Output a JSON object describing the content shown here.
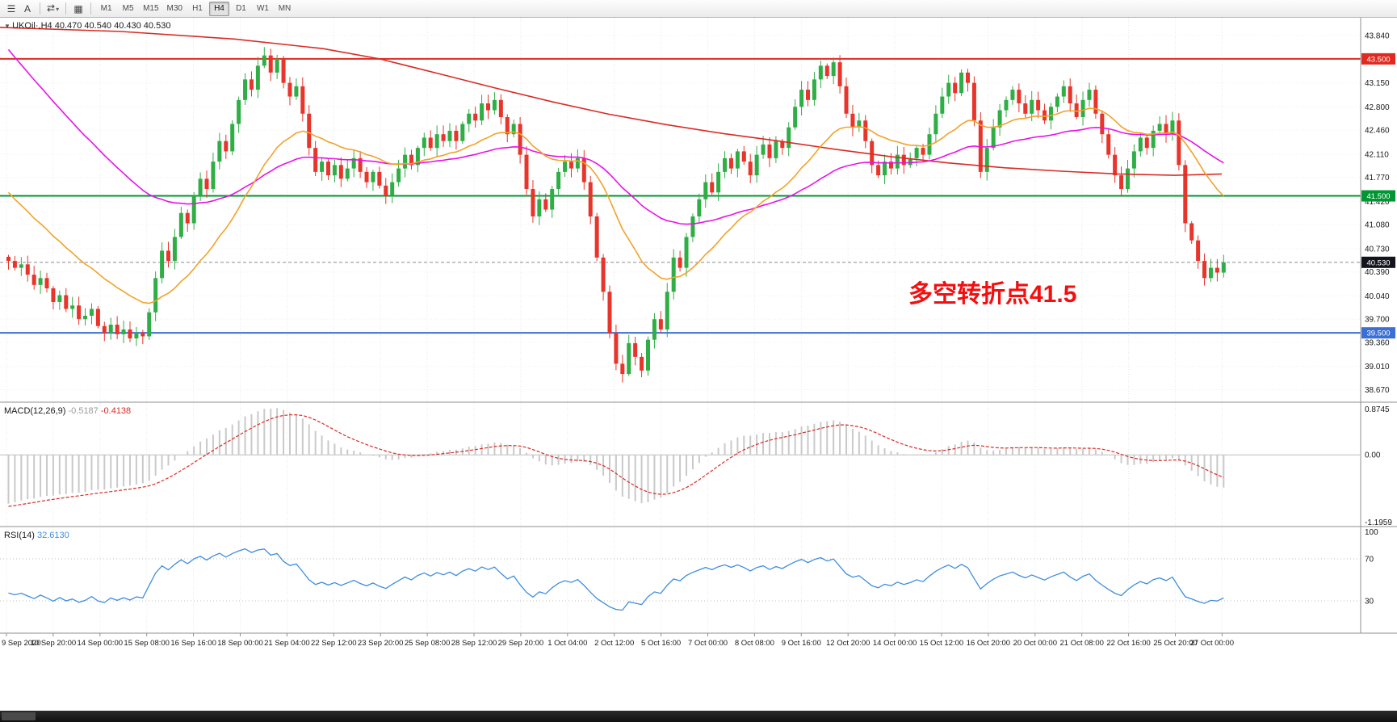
{
  "toolbar": {
    "icons": [
      {
        "name": "charts-menu-icon",
        "glyph": "☰",
        "caret": ""
      },
      {
        "name": "text-annotation-icon",
        "glyph": "A",
        "caret": ""
      },
      {
        "name": "symbols-cycle-icon",
        "glyph": "⇄",
        "caret": "▾"
      },
      {
        "name": "chart-template-icon",
        "glyph": "▦",
        "caret": ""
      }
    ],
    "timeframes": [
      "M1",
      "M5",
      "M15",
      "M30",
      "H1",
      "H4",
      "D1",
      "W1",
      "MN"
    ],
    "active_timeframe": "H4"
  },
  "chart": {
    "collapse_arrow": "▼",
    "symbol_label": "UKOil·,H4",
    "ohlc_label": "40.470 40.540 40.430 40.530",
    "annotation": {
      "text": "多空转折点41.5",
      "color": "#f30f0f"
    },
    "colors": {
      "up": "#2eae45",
      "down": "#e8342a",
      "ma_fast": "#f2a22b",
      "ma_medium": "#e812e8",
      "ma_slow": "#d92b25",
      "hline_red": "#e02a20",
      "hline_green": "#009632",
      "hline_blue": "#3b6fd4",
      "current_line": "#8a8a8a",
      "current_badge": "#14141e",
      "macd_hist": "#c9c9c9",
      "macd_signal": "#d92b25",
      "rsi_line": "#3e8ede",
      "grid": "#e9e9e9",
      "axis_line": "#8f8f8f",
      "tick_text": "#1a1a1a"
    },
    "hlines": [
      {
        "price": 43.5,
        "label": "43.500",
        "color_key": "hline_red"
      },
      {
        "price": 41.5,
        "label": "41.500",
        "color_key": "hline_green"
      },
      {
        "price": 39.5,
        "label": "39.500",
        "color_key": "hline_blue"
      }
    ],
    "current_price": {
      "value": 40.53,
      "label": "40.530"
    },
    "price_ticks": [
      "43.840",
      "43.150",
      "42.800",
      "42.460",
      "42.110",
      "41.770",
      "41.420",
      "41.080",
      "40.730",
      "40.390",
      "40.040",
      "39.700",
      "39.360",
      "39.010",
      "38.670"
    ]
  },
  "chart_data": {
    "type": "candlestick",
    "symbol": "UKOil",
    "timeframe": "H4",
    "title": "UKOil H4 candlestick chart with MACD and RSI",
    "y_range": [
      38.5,
      44.1
    ],
    "closes": [
      40.55,
      40.45,
      40.5,
      40.35,
      40.2,
      40.3,
      40.15,
      39.95,
      40.05,
      39.85,
      39.9,
      39.7,
      39.75,
      39.85,
      39.6,
      39.5,
      39.62,
      39.48,
      39.55,
      39.42,
      39.5,
      39.45,
      39.8,
      40.3,
      40.7,
      40.55,
      40.9,
      41.25,
      41.1,
      41.5,
      41.75,
      41.6,
      42.0,
      42.3,
      42.15,
      42.55,
      42.9,
      43.2,
      43.05,
      43.4,
      43.55,
      43.3,
      43.5,
      43.15,
      42.95,
      43.1,
      42.7,
      42.2,
      41.85,
      42.0,
      41.8,
      41.95,
      41.75,
      41.9,
      42.05,
      41.85,
      41.7,
      41.85,
      41.65,
      41.5,
      41.7,
      41.9,
      42.1,
      41.95,
      42.2,
      42.35,
      42.2,
      42.4,
      42.3,
      42.45,
      42.3,
      42.55,
      42.7,
      42.6,
      42.85,
      42.75,
      42.9,
      42.65,
      42.4,
      42.55,
      42.1,
      41.6,
      41.2,
      41.45,
      41.3,
      41.6,
      41.85,
      42.0,
      41.9,
      42.05,
      41.7,
      41.2,
      40.6,
      40.1,
      39.5,
      39.05,
      38.9,
      39.35,
      39.15,
      38.95,
      39.4,
      39.7,
      39.55,
      40.1,
      40.6,
      40.45,
      40.9,
      41.2,
      41.45,
      41.7,
      41.55,
      41.85,
      42.05,
      41.9,
      42.15,
      42.0,
      41.8,
      42.1,
      42.25,
      42.05,
      42.3,
      42.2,
      42.5,
      42.8,
      43.05,
      42.9,
      43.2,
      43.4,
      43.25,
      43.45,
      43.1,
      42.7,
      42.5,
      42.6,
      42.3,
      41.95,
      41.8,
      42.0,
      41.9,
      42.1,
      41.95,
      42.05,
      42.2,
      42.1,
      42.4,
      42.7,
      42.95,
      43.15,
      43.0,
      43.3,
      43.15,
      42.6,
      41.85,
      42.2,
      42.5,
      42.75,
      42.9,
      43.05,
      42.85,
      42.7,
      42.9,
      42.75,
      42.6,
      42.8,
      42.95,
      43.1,
      42.85,
      42.65,
      42.9,
      43.05,
      42.7,
      42.4,
      42.1,
      41.8,
      41.6,
      41.9,
      42.15,
      42.35,
      42.2,
      42.45,
      42.55,
      42.4,
      42.6,
      41.95,
      41.1,
      40.85,
      40.55,
      40.3,
      40.45,
      40.38,
      40.53
    ],
    "time_labels": [
      "9 Sep 2020",
      "10 Sep 20:00",
      "14 Sep 00:00",
      "15 Sep 08:00",
      "16 Sep 16:00",
      "18 Sep 00:00",
      "21 Sep 04:00",
      "22 Sep 12:00",
      "23 Sep 20:00",
      "25 Sep 08:00",
      "28 Sep 12:00",
      "29 Sep 20:00",
      "1 Oct 04:00",
      "2 Oct 12:00",
      "5 Oct 16:00",
      "7 Oct 00:00",
      "8 Oct 08:00",
      "9 Oct 16:00",
      "12 Oct 20:00",
      "14 Oct 00:00",
      "15 Oct 12:00",
      "16 Oct 20:00",
      "20 Oct 00:00",
      "21 Oct 08:00",
      "22 Oct 16:00",
      "25 Oct 20:00",
      "27 Oct 00:00"
    ],
    "moving_averages": [
      {
        "name": "slow-ma",
        "color_key": "ma_slow",
        "type": "points",
        "points": [
          [
            0,
            43.96
          ],
          [
            150,
            43.9
          ],
          [
            290,
            43.79
          ],
          [
            400,
            43.65
          ],
          [
            470,
            43.5
          ],
          [
            545,
            43.28
          ],
          [
            615,
            43.07
          ],
          [
            685,
            42.87
          ],
          [
            755,
            42.69
          ],
          [
            825,
            42.54
          ],
          [
            895,
            42.41
          ],
          [
            965,
            42.3
          ],
          [
            1035,
            42.18
          ],
          [
            1105,
            42.07
          ],
          [
            1175,
            41.98
          ],
          [
            1245,
            41.91
          ],
          [
            1315,
            41.86
          ],
          [
            1385,
            41.82
          ],
          [
            1455,
            41.8
          ],
          [
            1513,
            41.82
          ]
        ]
      },
      {
        "name": "medium-ma",
        "color_key": "ma_medium",
        "type": "ema",
        "period": 55,
        "seed": 43.75
      },
      {
        "name": "fast-ma",
        "color_key": "ma_fast",
        "type": "ema",
        "period": 21,
        "seed": 41.65
      }
    ],
    "macd": {
      "label": "MACD(12,26,9)",
      "value_main": "-0.5187",
      "value_signal": "-0.4138",
      "fast": 12,
      "slow": 26,
      "signal": 9,
      "range": [
        -1.1959,
        0.8745
      ],
      "axis_labels": [
        "0.8745",
        "0.00",
        "-1.1959"
      ]
    },
    "rsi": {
      "label": "RSI(14)",
      "value": "32.6130",
      "period": 14,
      "levels": [
        70,
        30
      ],
      "axis_labels": [
        "100",
        "70",
        "30"
      ]
    }
  }
}
